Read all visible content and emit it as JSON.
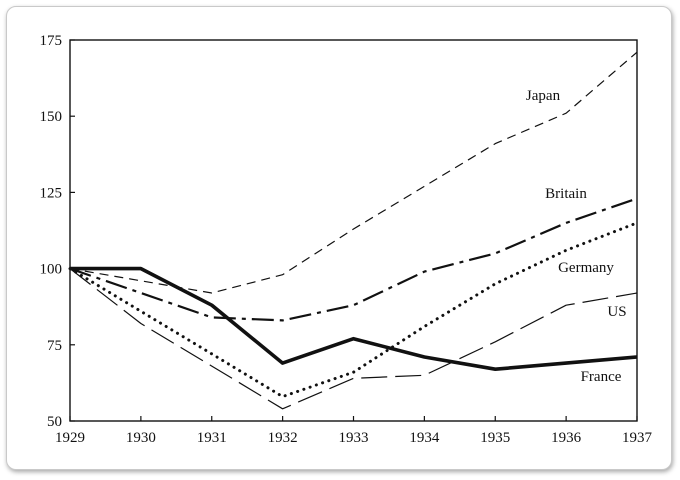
{
  "chart_data": {
    "type": "line",
    "title": "",
    "xlabel": "",
    "ylabel": "",
    "x": [
      1929,
      1930,
      1931,
      1932,
      1933,
      1934,
      1935,
      1936,
      1937
    ],
    "xlim": [
      1929,
      1937
    ],
    "ylim": [
      50,
      175
    ],
    "yticks": [
      50,
      75,
      100,
      125,
      150,
      175
    ],
    "grid": false,
    "legend": "inline labels",
    "series": [
      {
        "name": "Japan",
        "style": "short-dash",
        "values": [
          100,
          96,
          92,
          98,
          113,
          127,
          141,
          151,
          171
        ]
      },
      {
        "name": "Britain",
        "style": "long-dash-dot",
        "values": [
          100,
          92,
          84,
          83,
          88,
          99,
          105,
          115,
          123
        ]
      },
      {
        "name": "Germany",
        "style": "dotted",
        "values": [
          100,
          86,
          72,
          58,
          66,
          81,
          95,
          106,
          115
        ]
      },
      {
        "name": "US",
        "style": "long-dash",
        "values": [
          100,
          82,
          68,
          54,
          64,
          65,
          76,
          88,
          92
        ]
      },
      {
        "name": "France",
        "style": "solid-bold",
        "values": [
          100,
          100,
          88,
          69,
          77,
          71,
          67,
          69,
          71
        ]
      }
    ],
    "labels": {
      "xticks": [
        "1929",
        "1930",
        "1931",
        "1932",
        "1933",
        "1934",
        "1935",
        "1936",
        "1937"
      ],
      "yticks": [
        "50",
        "75",
        "100",
        "125",
        "150",
        "175"
      ]
    }
  }
}
